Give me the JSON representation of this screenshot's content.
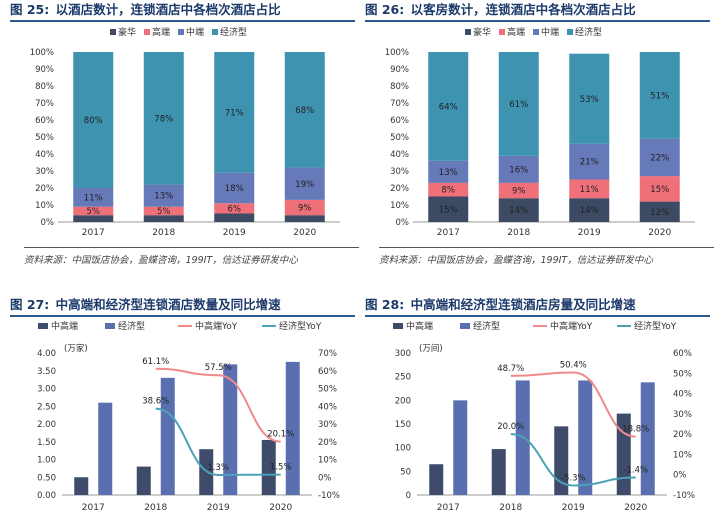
{
  "colors": {
    "luxury": "#3c4a63",
    "high": "#f0707a",
    "mid": "#6679b8",
    "economy": "#3e93b0",
    "mh_bar": "#3e4b6b",
    "eco_bar": "#5a6fb0",
    "mh_line": "#f08a8a",
    "eco_line": "#4ba2b8"
  },
  "fig25": {
    "title_num": "图 25:",
    "title_text": "以酒店数计，连锁酒店中各档次酒店占比",
    "source": "资料来源：中国饭店协会，盈蝶咨询，199IT，信达证券研发中心"
  },
  "fig26": {
    "title_num": "图 26:",
    "title_text": "以客房数计，连锁酒店中各档次酒店占比",
    "source": "资料来源：中国饭店协会，盈蝶咨询，199IT，信达证券研发中心"
  },
  "fig27": {
    "title_num": "图 27:",
    "title_text": "中高端和经济型连锁酒店数量及同比增速"
  },
  "fig28": {
    "title_num": "图 28:",
    "title_text": "中高端和经济型连锁酒店房量及同比增速"
  },
  "chart_data": [
    {
      "id": "c25",
      "type": "bar",
      "stacked": true,
      "categories": [
        "2017",
        "2018",
        "2019",
        "2020"
      ],
      "legend": [
        "豪华",
        "高端",
        "中端",
        "经济型"
      ],
      "series": [
        {
          "name": "豪华",
          "values": [
            4,
            4,
            5,
            4
          ]
        },
        {
          "name": "高端",
          "values": [
            5,
            5,
            6,
            9
          ]
        },
        {
          "name": "中端",
          "values": [
            11,
            13,
            18,
            19
          ]
        },
        {
          "name": "经济型",
          "values": [
            80,
            78,
            71,
            68
          ]
        }
      ],
      "labels": [
        [
          "",
          "",
          "",
          ""
        ],
        [
          "5%",
          "5%",
          "6%",
          "9%"
        ],
        [
          "11%",
          "13%",
          "18%",
          "19%"
        ],
        [
          "80%",
          "78%",
          "71%",
          "68%"
        ]
      ],
      "yticks": [
        "0%",
        "10%",
        "20%",
        "30%",
        "40%",
        "50%",
        "60%",
        "70%",
        "80%",
        "90%",
        "100%"
      ],
      "ylim": [
        0,
        100
      ]
    },
    {
      "id": "c26",
      "type": "bar",
      "stacked": true,
      "categories": [
        "2017",
        "2018",
        "2019",
        "2020"
      ],
      "legend": [
        "豪华",
        "高端",
        "中端",
        "经济型"
      ],
      "series": [
        {
          "name": "豪华",
          "values": [
            15,
            14,
            14,
            12
          ]
        },
        {
          "name": "高端",
          "values": [
            8,
            9,
            11,
            15
          ]
        },
        {
          "name": "中端",
          "values": [
            13,
            16,
            21,
            22
          ]
        },
        {
          "name": "经济型",
          "values": [
            64,
            61,
            53,
            51
          ]
        }
      ],
      "labels": [
        [
          "15%",
          "14%",
          "14%",
          "12%"
        ],
        [
          "8%",
          "9%",
          "11%",
          "15%"
        ],
        [
          "13%",
          "16%",
          "21%",
          "22%"
        ],
        [
          "64%",
          "61%",
          "53%",
          "51%"
        ]
      ],
      "yticks": [
        "0%",
        "10%",
        "20%",
        "30%",
        "40%",
        "50%",
        "60%",
        "70%",
        "80%",
        "90%",
        "100%"
      ],
      "ylim": [
        0,
        100
      ]
    },
    {
      "id": "c27",
      "type": "bar",
      "categories": [
        "2017",
        "2018",
        "2019",
        "2020"
      ],
      "legend": [
        "中高端",
        "经济型",
        "中高端YoY",
        "经济型YoY"
      ],
      "unit": "(万家)",
      "bars": [
        {
          "name": "中高端",
          "values": [
            0.5,
            0.8,
            1.29,
            1.55
          ]
        },
        {
          "name": "经济型",
          "values": [
            2.6,
            3.3,
            3.68,
            3.75
          ]
        }
      ],
      "lines": [
        {
          "name": "中高端YoY",
          "values": [
            null,
            61.1,
            57.5,
            20.1
          ],
          "labels": [
            "",
            "61.1%",
            "57.5%",
            "20.1%"
          ]
        },
        {
          "name": "经济型YoY",
          "values": [
            null,
            38.6,
            1.3,
            1.5
          ],
          "labels": [
            "",
            "38.6%",
            "1.3%",
            "1.5%"
          ]
        }
      ],
      "y_left_ticks": [
        "0.00",
        "0.50",
        "1.00",
        "1.50",
        "2.00",
        "2.50",
        "3.00",
        "3.50",
        "4.00"
      ],
      "y_left_lim": [
        0,
        4
      ],
      "y_right_ticks": [
        "-10%",
        "0%",
        "10%",
        "20%",
        "30%",
        "40%",
        "50%",
        "60%",
        "70%"
      ],
      "y_right_lim": [
        -10,
        70
      ]
    },
    {
      "id": "c28",
      "type": "bar",
      "categories": [
        "2017",
        "2018",
        "2019",
        "2020"
      ],
      "legend": [
        "中高端",
        "经济型",
        "中高端YoY",
        "经济型YoY"
      ],
      "unit": "(万间)",
      "bars": [
        {
          "name": "中高端",
          "values": [
            65,
            97,
            145,
            172
          ]
        },
        {
          "name": "经济型",
          "values": [
            200,
            242,
            242,
            238
          ]
        }
      ],
      "lines": [
        {
          "name": "中高端YoY",
          "values": [
            null,
            48.7,
            50.4,
            18.8
          ],
          "labels": [
            "",
            "48.7%",
            "50.4%",
            "18.8%"
          ]
        },
        {
          "name": "经济型YoY",
          "values": [
            null,
            20.0,
            -5.3,
            -1.4
          ],
          "labels": [
            "",
            "20.0%",
            "-5.3%",
            "-1.4%"
          ]
        }
      ],
      "y_left_ticks": [
        "0",
        "50",
        "100",
        "150",
        "200",
        "250",
        "300"
      ],
      "y_left_lim": [
        0,
        300
      ],
      "y_right_ticks": [
        "-10%",
        "0%",
        "10%",
        "20%",
        "30%",
        "40%",
        "50%",
        "60%"
      ],
      "y_right_lim": [
        -10,
        60
      ]
    }
  ]
}
